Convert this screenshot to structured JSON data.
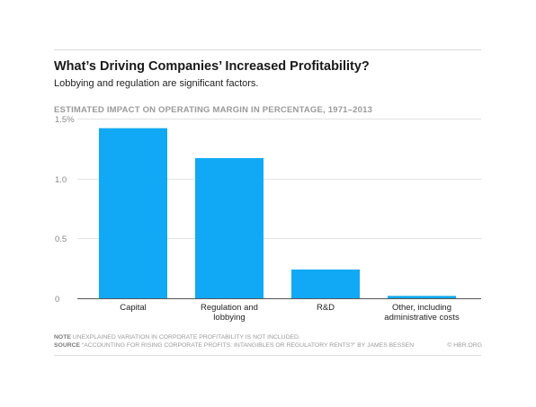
{
  "header": {
    "title": "What’s Driving Companies’ Increased Profitability?",
    "subtitle": "Lobbying and regulation are significant factors."
  },
  "chart_data": {
    "type": "bar",
    "title": "ESTIMATED IMPACT ON OPERATING MARGIN IN PERCENTAGE, 1971–2013",
    "categories": [
      [
        "Capital"
      ],
      [
        "Regulation and",
        "lobbying"
      ],
      [
        "R&D"
      ],
      [
        "Other, including",
        "administrative costs"
      ]
    ],
    "values": [
      1.42,
      1.17,
      0.24,
      0.02
    ],
    "ylim": [
      0,
      1.5
    ],
    "yticks": [
      {
        "value": 0,
        "label": "0"
      },
      {
        "value": 0.5,
        "label": "0.5"
      },
      {
        "value": 1.0,
        "label": "1.0"
      },
      {
        "value": 1.5,
        "label": "1.5%"
      }
    ],
    "grid": true,
    "bar_color": "#11a9f5",
    "grid_color": "#e3e3e3"
  },
  "footer": {
    "note_label": "NOTE",
    "note_text": "UNEXPLAINED VARIATION IN CORPORATE PROFITABILITY IS NOT INCLUDED.",
    "source_label": "SOURCE",
    "source_text": "“ACCOUNTING FOR RISING CORPORATE PROFITS: INTANGIBLES OR REGULATORY RENTS?” BY JAMES BESSEN",
    "credit": "© HBR.ORG"
  }
}
